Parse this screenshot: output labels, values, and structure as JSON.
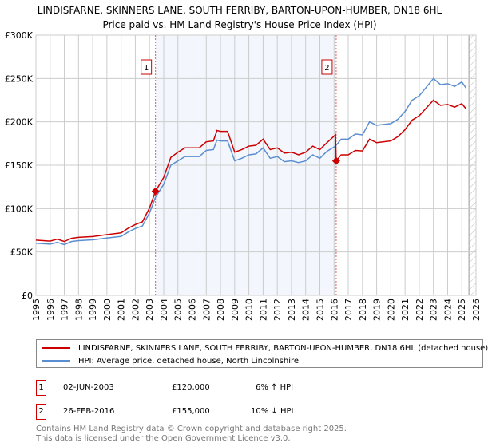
{
  "chart_data": {
    "type": "line",
    "title": "LINDISFARNE, SKINNERS LANE, SOUTH FERRIBY, BARTON-UPON-HUMBER, DN18 6HL",
    "subtitle": "Price paid vs. HM Land Registry's House Price Index (HPI)",
    "xlim": [
      1995,
      2026
    ],
    "ylim": [
      0,
      300000
    ],
    "y_ticks": [
      {
        "v": 0,
        "label": "£0"
      },
      {
        "v": 50000,
        "label": "£50K"
      },
      {
        "v": 100000,
        "label": "£100K"
      },
      {
        "v": 150000,
        "label": "£150K"
      },
      {
        "v": 200000,
        "label": "£200K"
      },
      {
        "v": 250000,
        "label": "£250K"
      },
      {
        "v": 300000,
        "label": "£300K"
      }
    ],
    "x_ticks": [
      "1995",
      "1996",
      "1997",
      "1998",
      "1999",
      "2000",
      "2001",
      "2002",
      "2003",
      "2004",
      "2005",
      "2006",
      "2007",
      "2008",
      "2009",
      "2010",
      "2011",
      "2012",
      "2013",
      "2014",
      "2015",
      "2016",
      "2017",
      "2018",
      "2019",
      "2020",
      "2021",
      "2022",
      "2023",
      "2024",
      "2025",
      "2026"
    ],
    "grid": true,
    "shaded_range": [
      2003.42,
      2016.15
    ],
    "hatched_from": 2025.5,
    "series": [
      {
        "name": "LINDISFARNE, SKINNERS LANE, SOUTH FERRIBY, BARTON-UPON-HUMBER, DN18 6HL (detached house)",
        "color": "#cc0000",
        "x": [
          1995,
          1996,
          1996.5,
          1997,
          1997.5,
          1998,
          1999,
          2000,
          2001,
          2001.5,
          2002,
          2002.5,
          2003,
          2003.42,
          2004,
          2004.5,
          2005,
          2005.5,
          2006,
          2006.5,
          2007,
          2007.5,
          2007.75,
          2008,
          2008.5,
          2009,
          2009.5,
          2010,
          2010.5,
          2011,
          2011.5,
          2012,
          2012.5,
          2013,
          2013.5,
          2014,
          2014.5,
          2015,
          2015.5,
          2016.1,
          2016.15,
          2016.5,
          2017,
          2017.5,
          2018,
          2018.5,
          2019,
          2019.5,
          2020,
          2020.5,
          2021,
          2021.5,
          2022,
          2022.5,
          2023,
          2023.5,
          2024,
          2024.5,
          2025,
          2025.3
        ],
        "y": [
          63600,
          62500,
          64700,
          62000,
          65700,
          66800,
          67800,
          70000,
          72000,
          77400,
          81600,
          84800,
          100700,
          120000,
          136000,
          159000,
          165000,
          170000,
          170000,
          170000,
          177000,
          178000,
          190000,
          189000,
          189000,
          165000,
          168000,
          172000,
          173000,
          180000,
          168000,
          170000,
          164000,
          165000,
          162000,
          165000,
          172000,
          168000,
          176000,
          185000,
          155000,
          162000,
          162000,
          167000,
          166500,
          180000,
          176000,
          177000,
          178000,
          183000,
          191000,
          202000,
          207000,
          216000,
          225000,
          219000,
          220000,
          217000,
          221000,
          215000
        ]
      },
      {
        "name": "HPI: Average price, detached house, North Lincolnshire",
        "color": "#5b8ed0",
        "x": [
          1995,
          1996,
          1996.5,
          1997,
          1997.5,
          1998,
          1999,
          2000,
          2001,
          2001.5,
          2002,
          2002.5,
          2003,
          2003.42,
          2004,
          2004.5,
          2005,
          2005.5,
          2006,
          2006.5,
          2007,
          2007.5,
          2007.75,
          2008,
          2008.5,
          2009,
          2009.5,
          2010,
          2010.5,
          2011,
          2011.5,
          2012,
          2012.5,
          2013,
          2013.5,
          2014,
          2014.5,
          2015,
          2015.5,
          2016.1,
          2016.5,
          2017,
          2017.5,
          2018,
          2018.5,
          2019,
          2019.5,
          2020,
          2020.5,
          2021,
          2021.5,
          2022,
          2022.5,
          2023,
          2023.5,
          2024,
          2024.5,
          2025,
          2025.3
        ],
        "y": [
          60000,
          59000,
          61000,
          58500,
          62000,
          63000,
          64000,
          66000,
          68000,
          73000,
          77000,
          80000,
          95000,
          113000,
          128000,
          150000,
          155000,
          160000,
          160000,
          160000,
          167000,
          168000,
          179000,
          178000,
          178000,
          155000,
          158000,
          162000,
          163000,
          170000,
          158000,
          160000,
          154000,
          155000,
          153000,
          155000,
          162000,
          158000,
          166000,
          172000,
          180000,
          180000,
          186000,
          185000,
          200000,
          196000,
          197000,
          198000,
          203000,
          212000,
          225000,
          230000,
          240000,
          250000,
          243000,
          244000,
          241000,
          246000,
          239000
        ]
      }
    ],
    "annotations": [
      {
        "label": "1",
        "x": 2003.42,
        "y": 120000
      },
      {
        "label": "2",
        "x": 2016.15,
        "y": 155000
      }
    ]
  },
  "legend": {
    "red": "LINDISFARNE, SKINNERS LANE, SOUTH FERRIBY, BARTON-UPON-HUMBER, DN18 6HL (detached house)",
    "blue": "HPI: Average price, detached house, North Lincolnshire"
  },
  "transactions": [
    {
      "num": "1",
      "date": "02-JUN-2003",
      "price": "£120,000",
      "hpi": "6% ↑ HPI"
    },
    {
      "num": "2",
      "date": "26-FEB-2016",
      "price": "£155,000",
      "hpi": "10% ↓ HPI"
    }
  ],
  "footer": {
    "line1": "Contains HM Land Registry data © Crown copyright and database right 2025.",
    "line2": "This data is licensed under the Open Government Licence v3.0."
  }
}
